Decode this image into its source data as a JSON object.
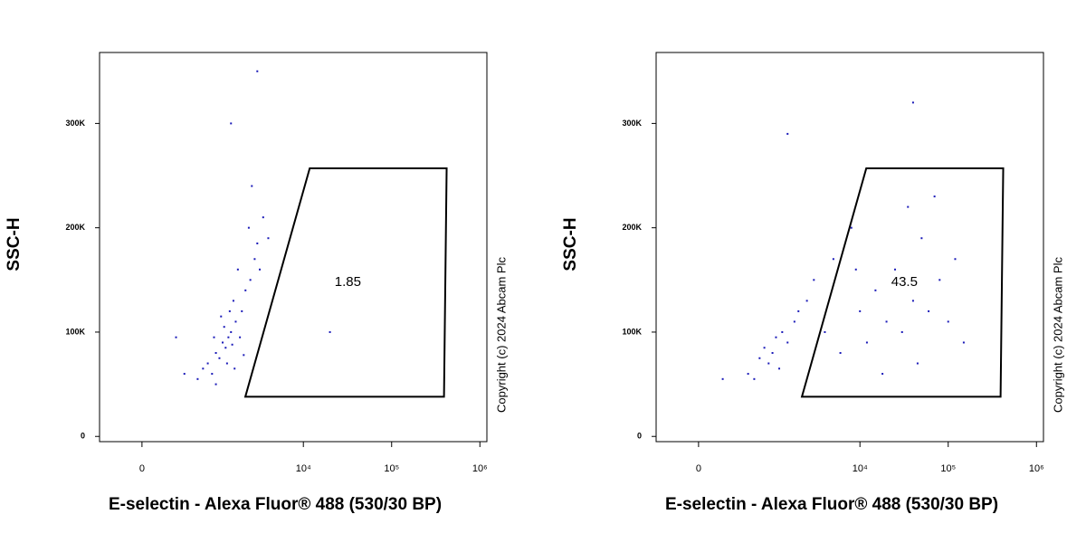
{
  "chart_data": [
    {
      "type": "scatter",
      "x_label": "E-selectin - Alexa Fluor® 488 (530/30 BP)",
      "y_label": "SSC-H",
      "copyright": "Copyright (c) 2024 Abcam Plc",
      "xscale": "biexponential",
      "xlim": [
        -400,
        1200000
      ],
      "ylim": [
        -5000,
        368000
      ],
      "xticks": [
        0,
        {
          "value": 10000,
          "label": "10⁴"
        },
        {
          "value": 100000,
          "label": "10⁵"
        },
        {
          "value": 1000000,
          "label": "10⁶"
        }
      ],
      "yticks": [
        0,
        {
          "value": 100000,
          "label": "100K"
        },
        {
          "value": 200000,
          "label": "200K"
        },
        {
          "value": 300000,
          "label": "300K"
        }
      ],
      "gate": {
        "x": [
          11800,
          420000,
          392000,
          2190
        ],
        "y": [
          257000,
          257000,
          38000,
          38000
        ],
        "label": "1.85"
      },
      "color": "#1a1ab8",
      "x": [
        600,
        800,
        1000,
        1200,
        1500,
        900,
        1100,
        1300,
        1400,
        1700,
        2000,
        1600,
        2200,
        2500,
        1800,
        2800,
        3000,
        2400,
        3500,
        1000,
        700,
        1250,
        1350,
        1550,
        1900,
        2100,
        400,
        3200,
        4000,
        2600,
        1500,
        3000,
        20000,
        300,
        1150,
        1450,
        1650,
        950
      ],
      "values": [
        55000,
        70000,
        80000,
        90000,
        100000,
        60000,
        75000,
        85000,
        95000,
        110000,
        120000,
        130000,
        140000,
        150000,
        160000,
        170000,
        185000,
        200000,
        210000,
        50000,
        65000,
        105000,
        70000,
        88000,
        95000,
        78000,
        60000,
        160000,
        190000,
        240000,
        300000,
        350000,
        100000,
        95000,
        115000,
        120000,
        65000,
        95000
      ]
    },
    {
      "type": "scatter",
      "x_label": "E-selectin - Alexa Fluor® 488 (530/30 BP)",
      "y_label": "SSC-H",
      "copyright": "Copyright (c) 2024 Abcam Plc",
      "xscale": "biexponential",
      "xlim": [
        -400,
        1200000
      ],
      "ylim": [
        -5000,
        368000
      ],
      "xticks": [
        0,
        {
          "value": 10000,
          "label": "10⁴"
        },
        {
          "value": 100000,
          "label": "10⁵"
        },
        {
          "value": 1000000,
          "label": "10⁶"
        }
      ],
      "yticks": [
        0,
        {
          "value": 100000,
          "label": "100K"
        },
        {
          "value": 200000,
          "label": "200K"
        },
        {
          "value": 300000,
          "label": "300K"
        }
      ],
      "gate": {
        "x": [
          11800,
          420000,
          392000,
          2190
        ],
        "y": [
          257000,
          257000,
          38000,
          38000
        ],
        "label": "43.5"
      },
      "color": "#1a1ab8",
      "x": [
        500,
        700,
        800,
        900,
        1000,
        1100,
        1200,
        1300,
        1500,
        600,
        1800,
        2000,
        2500,
        3000,
        4000,
        5000,
        6000,
        8000,
        10000,
        12000,
        15000,
        20000,
        25000,
        30000,
        40000,
        50000,
        60000,
        80000,
        100000,
        120000,
        150000,
        35000,
        70000,
        18000,
        45000,
        9000,
        200,
        40000,
        1500
      ],
      "values": [
        60000,
        75000,
        85000,
        70000,
        80000,
        95000,
        65000,
        100000,
        90000,
        55000,
        110000,
        120000,
        130000,
        150000,
        100000,
        170000,
        80000,
        200000,
        120000,
        90000,
        140000,
        110000,
        160000,
        100000,
        130000,
        190000,
        120000,
        150000,
        110000,
        170000,
        90000,
        220000,
        230000,
        60000,
        70000,
        160000,
        55000,
        320000,
        290000
      ]
    }
  ]
}
